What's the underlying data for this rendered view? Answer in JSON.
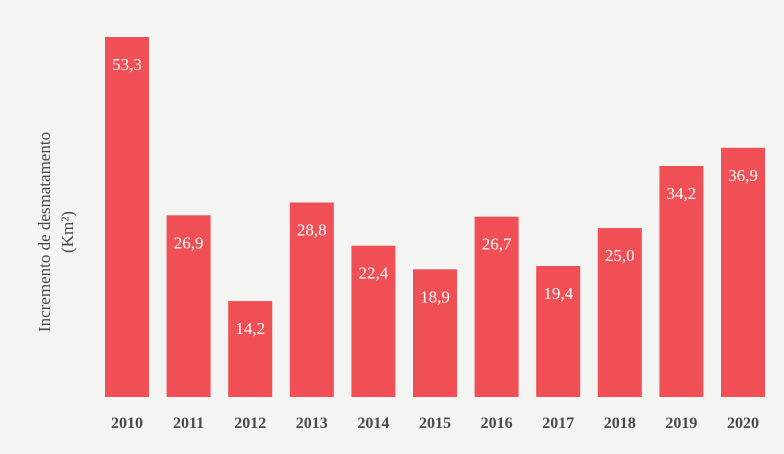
{
  "chart_data": {
    "type": "bar",
    "categories": [
      "2010",
      "2011",
      "2012",
      "2013",
      "2014",
      "2015",
      "2016",
      "2017",
      "2018",
      "2019",
      "2020"
    ],
    "values": [
      53.3,
      26.9,
      14.2,
      28.8,
      22.4,
      18.9,
      26.7,
      19.4,
      25.0,
      34.2,
      36.9
    ],
    "value_labels": [
      "53,3",
      "26,9",
      "14,2",
      "28,8",
      "22,4",
      "18,9",
      "26,7",
      "19,4",
      "25,0",
      "34,2",
      "36,9"
    ],
    "xlabel": "",
    "ylabel_line1": "Incremento de desmatamento",
    "ylabel_line2": "(Km²)",
    "ylim": [
      0,
      55
    ],
    "grid": false,
    "bar_color": "#ef4f55"
  }
}
